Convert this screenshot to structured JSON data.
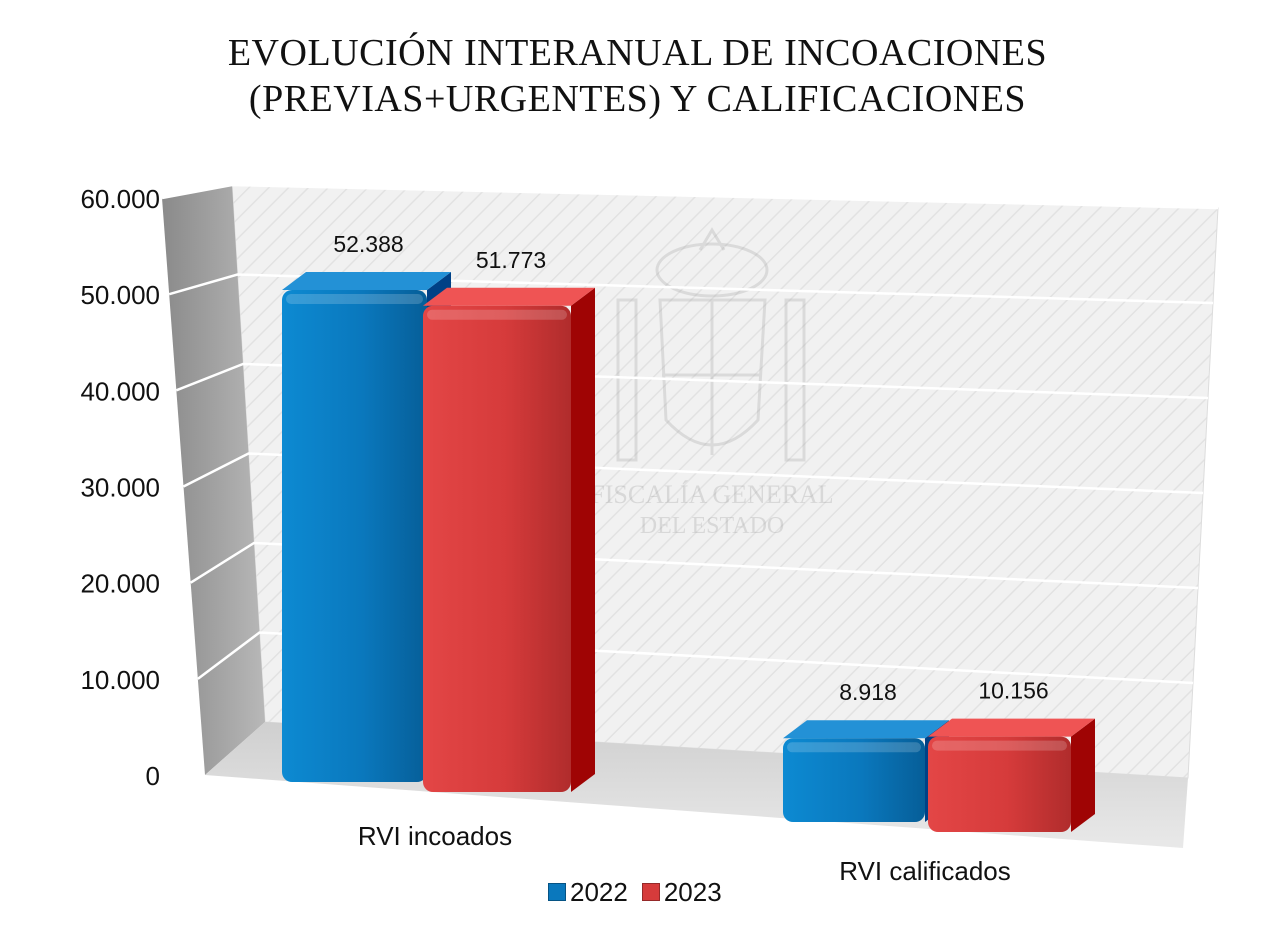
{
  "title_lines": [
    "EVOLUCIÓN INTERANUAL DE INCOACIONES",
    "(PREVIAS+URGENTES) Y CALIFICACIONES"
  ],
  "watermark": {
    "line1": "FISCALÍA GENERAL",
    "line2": "DEL ESTADO"
  },
  "colors": {
    "series_2022": "#0a78bd",
    "series_2023": "#d63b3b"
  },
  "chart_data": {
    "type": "bar",
    "title": "EVOLUCIÓN INTERANUAL DE INCOACIONES (PREVIAS+URGENTES) Y CALIFICACIONES",
    "categories": [
      "RVI incoados",
      "RVI calificados"
    ],
    "series": [
      {
        "name": "2022",
        "values": [
          52388,
          8918
        ],
        "labels": [
          "52.388",
          "8.918"
        ]
      },
      {
        "name": "2023",
        "values": [
          51773,
          10156
        ],
        "labels": [
          "51.773",
          "10.156"
        ]
      }
    ],
    "y_ticks": [
      0,
      10000,
      20000,
      30000,
      40000,
      50000,
      60000
    ],
    "y_tick_labels": [
      "0",
      "10.000",
      "20.000",
      "30.000",
      "40.000",
      "50.000",
      "60.000"
    ],
    "ylim": [
      0,
      60000
    ],
    "grid": true,
    "legend_position": "bottom",
    "style": "3d-clustered-column"
  }
}
